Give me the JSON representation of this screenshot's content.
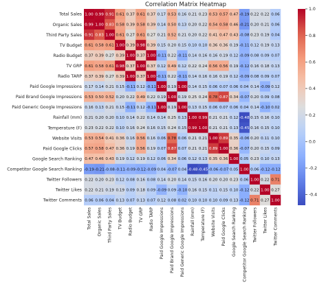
{
  "chart_data": {
    "type": "heatmap",
    "title": "Correlation Matrix Heatmap",
    "labels": [
      "Total Sales",
      "Organic Sales",
      "Third Party Sales",
      "TV Budget",
      "Radio Budget",
      "TV GRP",
      "Radio TARP",
      "Paid Google Impressions",
      "Paid Brand Google Impressions",
      "Paid Generic Google Impressions",
      "Rainfall (mm)",
      "Temperature (F)",
      "Website Visits",
      "Paid Google Clicks",
      "Google Search Ranking",
      "Competitor Google Search Ranking",
      "Twitter Followers",
      "Twitter Likes",
      "Twitter Comments"
    ],
    "matrix": [
      [
        1.0,
        0.99,
        0.91,
        0.61,
        0.37,
        0.61,
        0.37,
        0.17,
        0.53,
        0.16,
        0.21,
        0.23,
        0.53,
        0.57,
        0.47,
        -0.19,
        0.22,
        0.22,
        0.06
      ],
      [
        0.99,
        1.0,
        0.83,
        0.58,
        0.39,
        0.58,
        0.39,
        0.14,
        0.5,
        0.13,
        0.2,
        0.22,
        0.54,
        0.58,
        0.46,
        -0.21,
        0.2,
        0.21,
        0.06
      ],
      [
        0.91,
        0.83,
        1.0,
        0.61,
        0.27,
        0.61,
        0.27,
        0.21,
        0.52,
        0.21,
        0.2,
        0.22,
        0.41,
        0.47,
        0.43,
        -0.08,
        0.23,
        0.19,
        0.04
      ],
      [
        0.61,
        0.58,
        0.61,
        1.0,
        0.39,
        0.98,
        0.39,
        0.15,
        0.2,
        0.15,
        0.1,
        0.1,
        0.36,
        0.36,
        0.19,
        -0.11,
        0.12,
        0.19,
        0.13
      ],
      [
        0.37,
        0.39,
        0.27,
        0.39,
        1.0,
        0.37,
        1.0,
        -0.11,
        0.22,
        -0.11,
        0.14,
        0.16,
        0.16,
        0.19,
        0.12,
        -0.09,
        0.08,
        0.09,
        0.07
      ],
      [
        0.61,
        0.58,
        0.61,
        0.98,
        0.37,
        1.0,
        0.37,
        0.12,
        0.49,
        0.12,
        0.22,
        0.24,
        0.56,
        0.56,
        0.19,
        -0.12,
        0.16,
        0.18,
        0.13
      ],
      [
        0.37,
        0.39,
        0.27,
        0.39,
        1.0,
        0.37,
        1.0,
        -0.11,
        0.22,
        -0.11,
        0.14,
        0.16,
        0.16,
        0.19,
        0.12,
        -0.09,
        0.08,
        0.09,
        0.07
      ],
      [
        0.17,
        0.14,
        0.21,
        0.15,
        -0.11,
        0.12,
        -0.11,
        1.0,
        0.19,
        1.0,
        0.14,
        0.15,
        0.06,
        0.07,
        0.06,
        0.04,
        0.14,
        -0.09,
        0.12
      ],
      [
        0.53,
        0.5,
        0.52,
        0.2,
        0.22,
        0.49,
        0.22,
        0.19,
        1.0,
        0.19,
        0.25,
        0.24,
        0.78,
        0.87,
        0.34,
        -0.07,
        0.2,
        0.09,
        0.08
      ],
      [
        0.16,
        0.13,
        0.21,
        0.15,
        -0.11,
        0.12,
        -0.11,
        1.0,
        0.19,
        1.0,
        0.13,
        0.15,
        0.06,
        0.07,
        0.06,
        0.04,
        0.14,
        -0.1,
        0.02
      ],
      [
        0.21,
        0.2,
        0.2,
        0.1,
        0.14,
        0.22,
        0.14,
        0.14,
        0.25,
        0.13,
        1.0,
        0.99,
        0.21,
        0.21,
        0.12,
        -0.48,
        0.15,
        0.16,
        0.1
      ],
      [
        0.23,
        0.22,
        0.22,
        0.1,
        0.16,
        0.24,
        0.16,
        0.15,
        0.24,
        0.15,
        0.99,
        1.0,
        0.21,
        0.21,
        0.13,
        -0.45,
        0.16,
        0.15,
        0.1
      ],
      [
        0.53,
        0.54,
        0.41,
        0.36,
        0.16,
        0.56,
        0.16,
        0.06,
        0.78,
        0.06,
        0.21,
        0.21,
        1.0,
        0.89,
        0.35,
        -0.06,
        0.2,
        0.11,
        0.1
      ],
      [
        0.57,
        0.58,
        0.47,
        0.36,
        0.19,
        0.56,
        0.19,
        0.07,
        0.87,
        0.07,
        0.21,
        0.21,
        0.89,
        1.0,
        0.36,
        -0.07,
        0.2,
        0.15,
        0.09
      ],
      [
        0.47,
        0.46,
        0.43,
        0.19,
        0.12,
        0.19,
        0.12,
        0.06,
        0.34,
        0.06,
        0.12,
        0.13,
        0.35,
        0.36,
        1.0,
        0.05,
        0.23,
        0.1,
        0.13
      ],
      [
        -0.19,
        -0.21,
        -0.08,
        -0.11,
        -0.09,
        -0.12,
        -0.09,
        0.04,
        -0.07,
        0.04,
        -0.48,
        -0.45,
        -0.06,
        -0.07,
        0.05,
        1.0,
        0.06,
        -0.12,
        -0.12
      ],
      [
        0.22,
        0.2,
        0.23,
        0.12,
        0.08,
        0.16,
        0.08,
        0.14,
        0.2,
        0.14,
        0.15,
        0.16,
        0.2,
        0.2,
        0.23,
        0.06,
        1.0,
        0.22,
        0.71
      ],
      [
        0.22,
        0.21,
        0.19,
        0.19,
        0.09,
        0.18,
        0.09,
        -0.09,
        0.09,
        -0.1,
        0.16,
        0.15,
        0.11,
        0.15,
        0.1,
        -0.12,
        0.22,
        1.0,
        0.27
      ],
      [
        0.06,
        0.06,
        0.04,
        0.13,
        0.07,
        0.13,
        0.07,
        0.12,
        0.08,
        0.02,
        0.1,
        0.1,
        0.1,
        0.09,
        0.13,
        -0.12,
        0.71,
        0.27,
        1.0
      ]
    ],
    "colorbar": {
      "range": [
        -0.48,
        1.0
      ],
      "ticks": [
        "1.0",
        "0.8",
        "0.6",
        "0.4",
        "0.2",
        "0.0",
        "-0.2",
        "-0.4"
      ],
      "tick_values": [
        1.0,
        0.8,
        0.6,
        0.4,
        0.2,
        0.0,
        -0.2,
        -0.4
      ],
      "colormap": "coolwarm"
    }
  }
}
